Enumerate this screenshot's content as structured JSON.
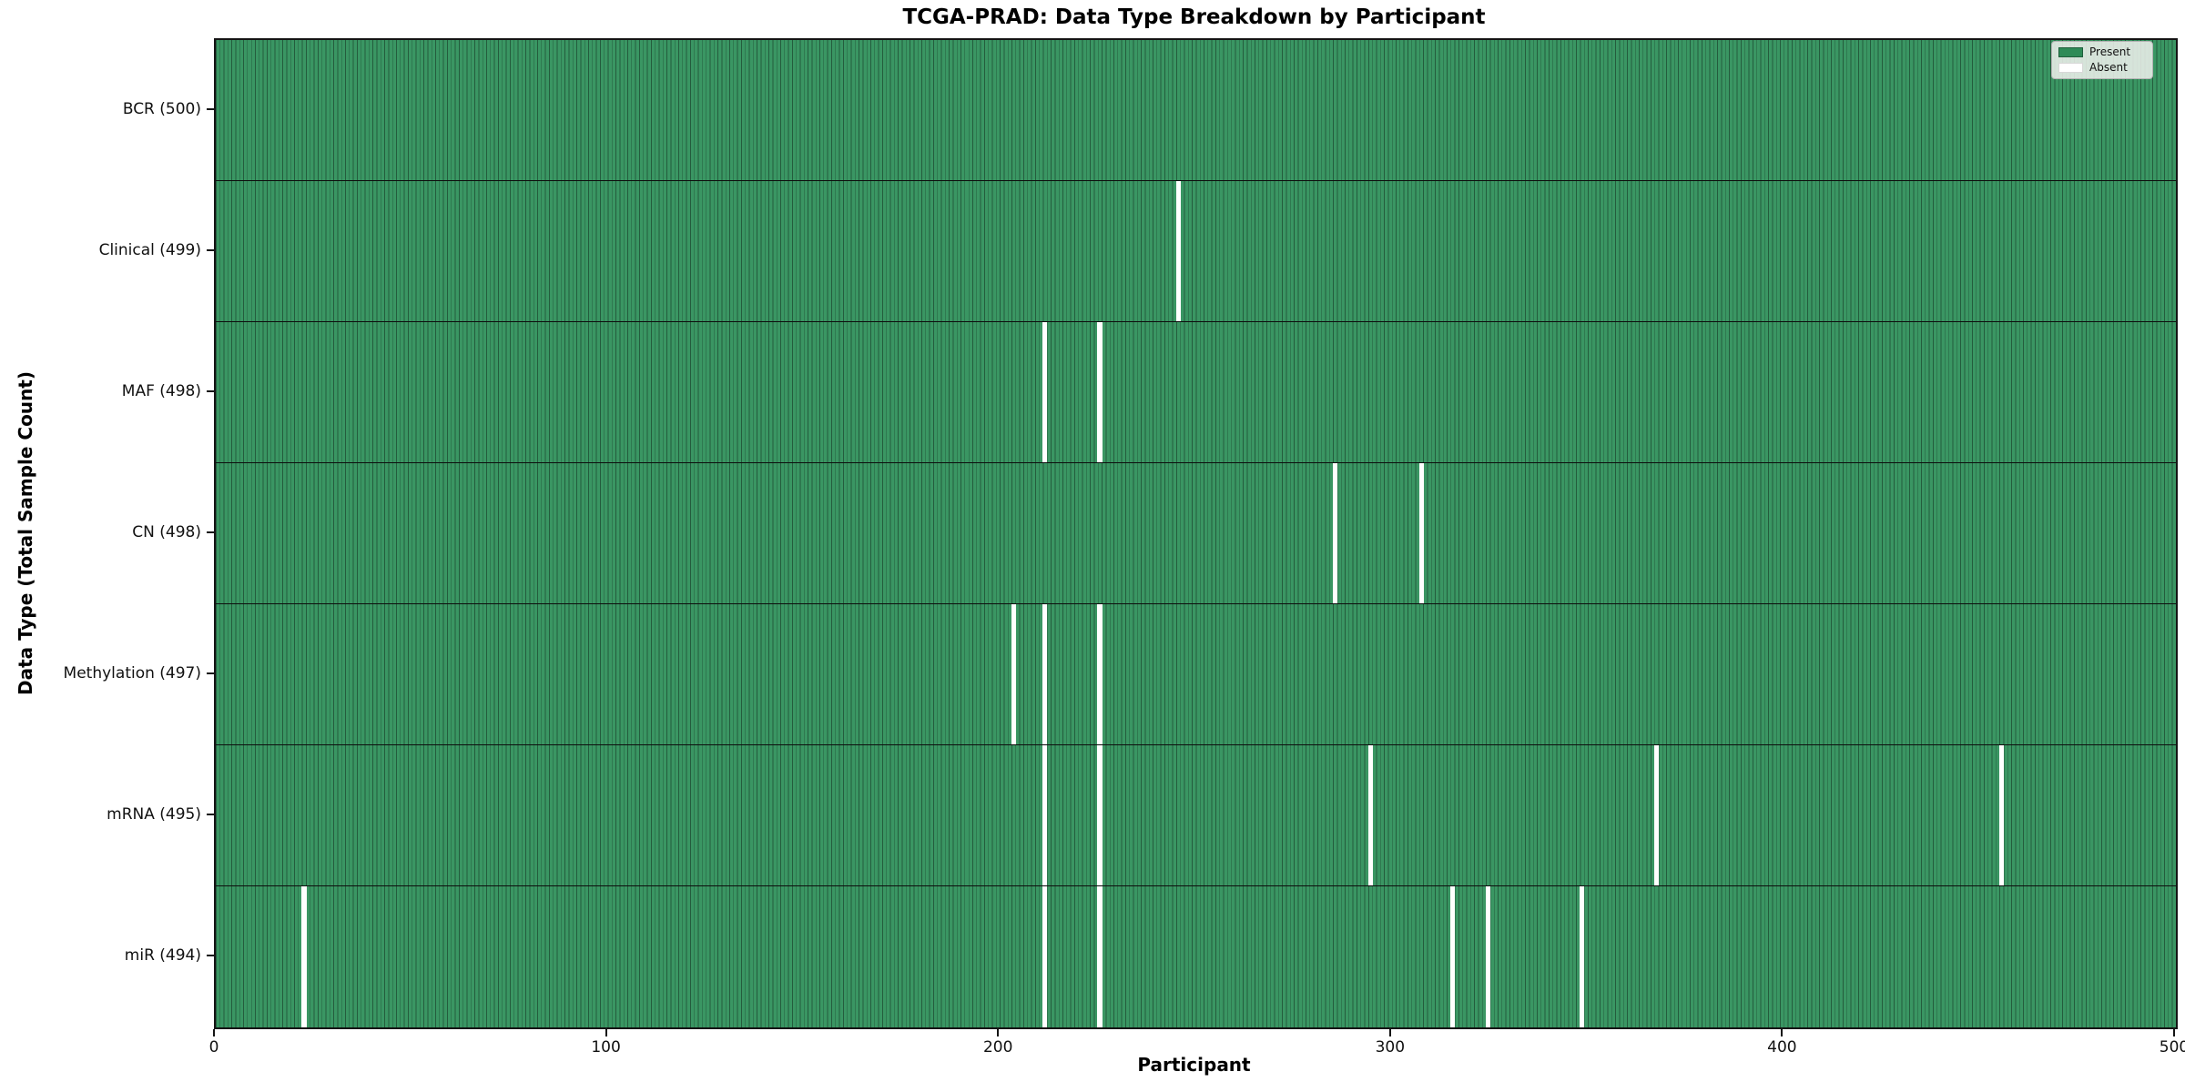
{
  "figure": {
    "title": "TCGA-PRAD: Data Type Breakdown by Participant",
    "xlabel": "Participant",
    "ylabel": "Data Type (Total Sample Count)"
  },
  "legend_items": [
    {
      "label": "Present",
      "swatch_color": "#2E8B57"
    },
    {
      "label": "Absent",
      "swatch_color": "#FFFFFF"
    }
  ],
  "chart_data": {
    "type": "heatmap",
    "title": "TCGA-PRAD: Data Type Breakdown by Participant",
    "xlabel": "Participant",
    "ylabel": "Data Type (Total Sample Count)",
    "x_range": [
      0,
      500
    ],
    "x_ticks": [
      0,
      100,
      200,
      300,
      400,
      500
    ],
    "n_participants": 500,
    "grid": false,
    "legend_position": "upper right",
    "colors": {
      "present_fill": "#3A9663",
      "present_legend": "#2E8B57",
      "absent_fill": "#FFFFFF",
      "cell_edge": "#245C3D",
      "row_divider": "#0D0D0D"
    },
    "rows": [
      {
        "label": "BCR",
        "count": 500,
        "tick_label": "BCR (500)",
        "absent_participants": []
      },
      {
        "label": "Clinical",
        "count": 499,
        "tick_label": "Clinical (499)",
        "absent_participants": [
          245
        ]
      },
      {
        "label": "MAF",
        "count": 498,
        "tick_label": "MAF (498)",
        "absent_participants": [
          211,
          225
        ]
      },
      {
        "label": "CN",
        "count": 498,
        "tick_label": "CN (498)",
        "absent_participants": [
          285,
          307
        ]
      },
      {
        "label": "Methylation",
        "count": 497,
        "tick_label": "Methylation (497)",
        "absent_participants": [
          203,
          211,
          225
        ]
      },
      {
        "label": "mRNA",
        "count": 495,
        "tick_label": "mRNA (495)",
        "absent_participants": [
          211,
          225,
          294,
          367,
          455
        ]
      },
      {
        "label": "miR",
        "count": 494,
        "tick_label": "miR (494)",
        "absent_participants": [
          22,
          211,
          225,
          315,
          324,
          348
        ]
      }
    ]
  }
}
